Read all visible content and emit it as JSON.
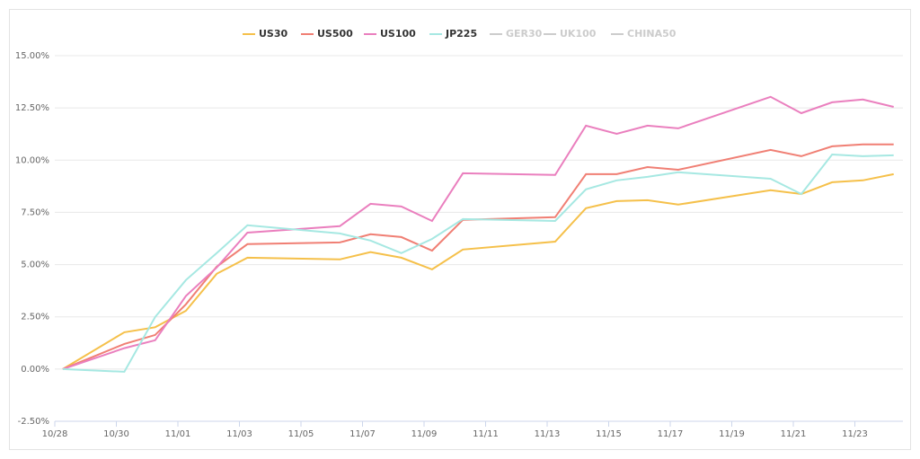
{
  "chart_data": {
    "type": "line",
    "x": [
      "10/28",
      "10/30",
      "10/31",
      "11/01",
      "11/02",
      "11/03",
      "11/06",
      "11/07",
      "11/08",
      "11/09",
      "11/10",
      "11/13",
      "11/14",
      "11/15",
      "11/16",
      "11/17",
      "11/20",
      "11/21",
      "11/22",
      "11/23",
      "11/24"
    ],
    "series": [
      {
        "name": "US30",
        "color": "#f5c04a",
        "visible": true,
        "values": [
          0,
          1.76,
          2.0,
          2.79,
          4.56,
          5.33,
          5.25,
          5.6,
          5.33,
          4.77,
          5.72,
          6.1,
          7.7,
          8.04,
          8.08,
          7.87,
          8.56,
          8.38,
          8.94,
          9.03,
          9.33
        ]
      },
      {
        "name": "US500",
        "color": "#f07f74",
        "visible": true,
        "values": [
          0,
          1.2,
          1.63,
          3.1,
          4.9,
          5.98,
          6.06,
          6.45,
          6.32,
          5.67,
          7.14,
          7.27,
          9.33,
          9.33,
          9.67,
          9.54,
          10.49,
          10.19,
          10.66,
          10.75,
          10.75
        ]
      },
      {
        "name": "US100",
        "color": "#ea7fbe",
        "visible": true,
        "values": [
          0,
          1.0,
          1.38,
          3.5,
          4.86,
          6.53,
          6.84,
          7.91,
          7.78,
          7.09,
          9.37,
          9.29,
          11.65,
          11.26,
          11.65,
          11.52,
          13.03,
          12.25,
          12.77,
          12.9,
          12.55
        ]
      },
      {
        "name": "JP225",
        "color": "#a6e8e2",
        "visible": true,
        "values": [
          0,
          -0.13,
          2.49,
          4.26,
          5.55,
          6.88,
          6.49,
          6.15,
          5.55,
          6.23,
          7.18,
          7.09,
          8.6,
          9.03,
          9.2,
          9.42,
          9.11,
          8.38,
          10.27,
          10.19,
          10.23
        ]
      },
      {
        "name": "GER30",
        "color": "#cccccc",
        "visible": false,
        "values": [
          null,
          null,
          null,
          null,
          null,
          null,
          null,
          null,
          null,
          null,
          null,
          null,
          null,
          null,
          null,
          null,
          null,
          null,
          null,
          null,
          null
        ]
      },
      {
        "name": "UK100",
        "color": "#cccccc",
        "visible": false,
        "values": [
          null,
          null,
          null,
          null,
          null,
          null,
          null,
          null,
          null,
          null,
          null,
          null,
          null,
          null,
          null,
          null,
          null,
          null,
          null,
          null,
          null
        ]
      },
      {
        "name": "CHINA50",
        "color": "#cccccc",
        "visible": false,
        "values": [
          null,
          null,
          null,
          null,
          null,
          null,
          null,
          null,
          null,
          null,
          null,
          null,
          null,
          null,
          null,
          null,
          null,
          null,
          null,
          null,
          null
        ]
      }
    ],
    "ylim": [
      -2.5,
      15
    ],
    "yticks": [
      {
        "value": -2.5,
        "label": "-2.50%"
      },
      {
        "value": 0,
        "label": "0.00%"
      },
      {
        "value": 2.5,
        "label": "2.50%"
      },
      {
        "value": 5,
        "label": "5.00%"
      },
      {
        "value": 7.5,
        "label": "7.50%"
      },
      {
        "value": 10,
        "label": "10.00%"
      },
      {
        "value": 12.5,
        "label": "12.50%"
      },
      {
        "value": 15,
        "label": "15.00%"
      }
    ],
    "xticks": [
      "10/28",
      "10/30",
      "11/01",
      "11/03",
      "11/05",
      "11/07",
      "11/09",
      "11/11",
      "11/13",
      "11/15",
      "11/17",
      "11/19",
      "11/21",
      "11/23"
    ],
    "grid": true,
    "legend": "top"
  }
}
